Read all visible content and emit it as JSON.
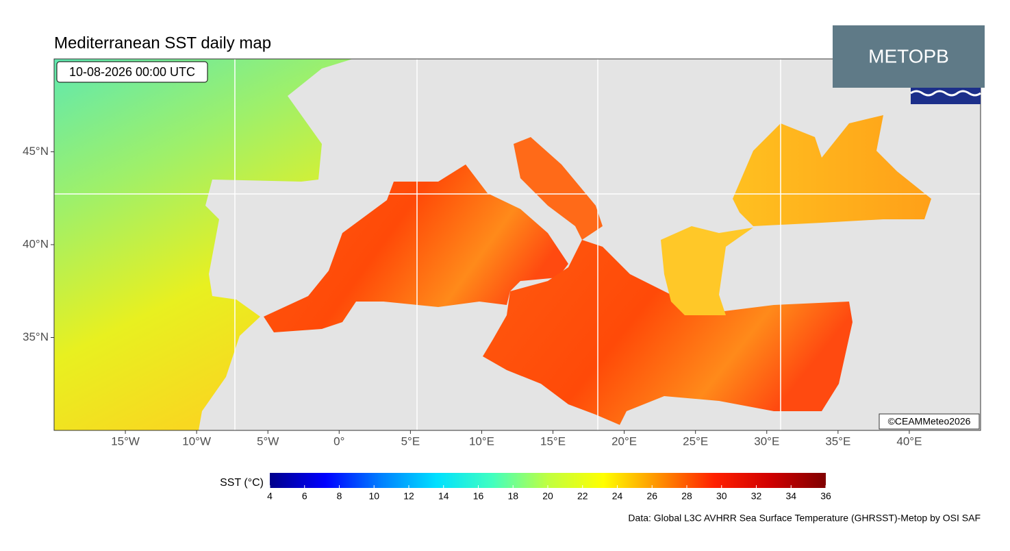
{
  "map": {
    "title": "Mediterranean SST daily map",
    "timestamp": "10-08-2026 00:00 UTC",
    "badge": "METOPB",
    "credit": "©CEAMMeteo2026",
    "source": "Data: Global L3C AVHRR Sea Surface Temperature (GHRSST)-Metop by OSI SAF",
    "xlim": [
      -20,
      45
    ],
    "ylim": [
      30,
      50
    ],
    "xticks": [
      {
        "value": -15,
        "label": "15°W"
      },
      {
        "value": -10,
        "label": "10°W"
      },
      {
        "value": -5,
        "label": "5°W"
      },
      {
        "value": 0,
        "label": "0°"
      },
      {
        "value": 5,
        "label": "5°E"
      },
      {
        "value": 10,
        "label": "10°E"
      },
      {
        "value": 15,
        "label": "15°E"
      },
      {
        "value": 20,
        "label": "20°E"
      },
      {
        "value": 25,
        "label": "25°E"
      },
      {
        "value": 30,
        "label": "30°E"
      },
      {
        "value": 35,
        "label": "35°E"
      },
      {
        "value": 40,
        "label": "40°E"
      }
    ],
    "yticks": [
      {
        "value": 35,
        "label": "35°N"
      },
      {
        "value": 40,
        "label": "40°N"
      },
      {
        "value": 45,
        "label": "45°N"
      }
    ],
    "colorbar": {
      "label": "SST (°C)",
      "lim": [
        4,
        36
      ],
      "ticks": [
        4,
        6,
        8,
        10,
        12,
        14,
        16,
        18,
        20,
        22,
        24,
        26,
        28,
        30,
        32,
        34,
        36
      ],
      "colors": [
        "#00008b",
        "#0000ff",
        "#0080ff",
        "#00e0ff",
        "#40ffc0",
        "#c0ff40",
        "#ffff00",
        "#ff9000",
        "#ff2000",
        "#d00000",
        "#800000"
      ]
    }
  }
}
